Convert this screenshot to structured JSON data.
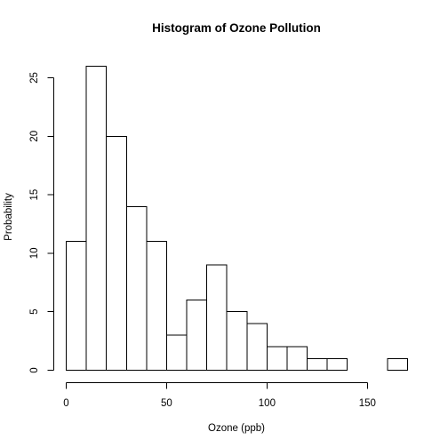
{
  "chart_data": {
    "type": "bar",
    "title": "Histogram of Ozone Pollution",
    "xlabel": "Ozone (ppb)",
    "ylabel": "Probability",
    "bins": [
      {
        "start": 0,
        "end": 10,
        "value": 11
      },
      {
        "start": 10,
        "end": 20,
        "value": 26
      },
      {
        "start": 20,
        "end": 30,
        "value": 20
      },
      {
        "start": 30,
        "end": 40,
        "value": 14
      },
      {
        "start": 40,
        "end": 50,
        "value": 11
      },
      {
        "start": 50,
        "end": 60,
        "value": 3
      },
      {
        "start": 60,
        "end": 70,
        "value": 6
      },
      {
        "start": 70,
        "end": 80,
        "value": 9
      },
      {
        "start": 80,
        "end": 90,
        "value": 5
      },
      {
        "start": 90,
        "end": 100,
        "value": 4
      },
      {
        "start": 100,
        "end": 110,
        "value": 2
      },
      {
        "start": 110,
        "end": 120,
        "value": 2
      },
      {
        "start": 120,
        "end": 130,
        "value": 1
      },
      {
        "start": 130,
        "end": 140,
        "value": 1
      },
      {
        "start": 140,
        "end": 150,
        "value": 0
      },
      {
        "start": 150,
        "end": 160,
        "value": 0
      },
      {
        "start": 160,
        "end": 170,
        "value": 1
      }
    ],
    "xlim": [
      0,
      170
    ],
    "ylim": [
      0,
      26
    ],
    "xticks": [
      "0",
      "50",
      "100",
      "150"
    ],
    "yticks": [
      "0",
      "5",
      "10",
      "15",
      "20",
      "25"
    ],
    "grid": false,
    "legend": "none"
  }
}
